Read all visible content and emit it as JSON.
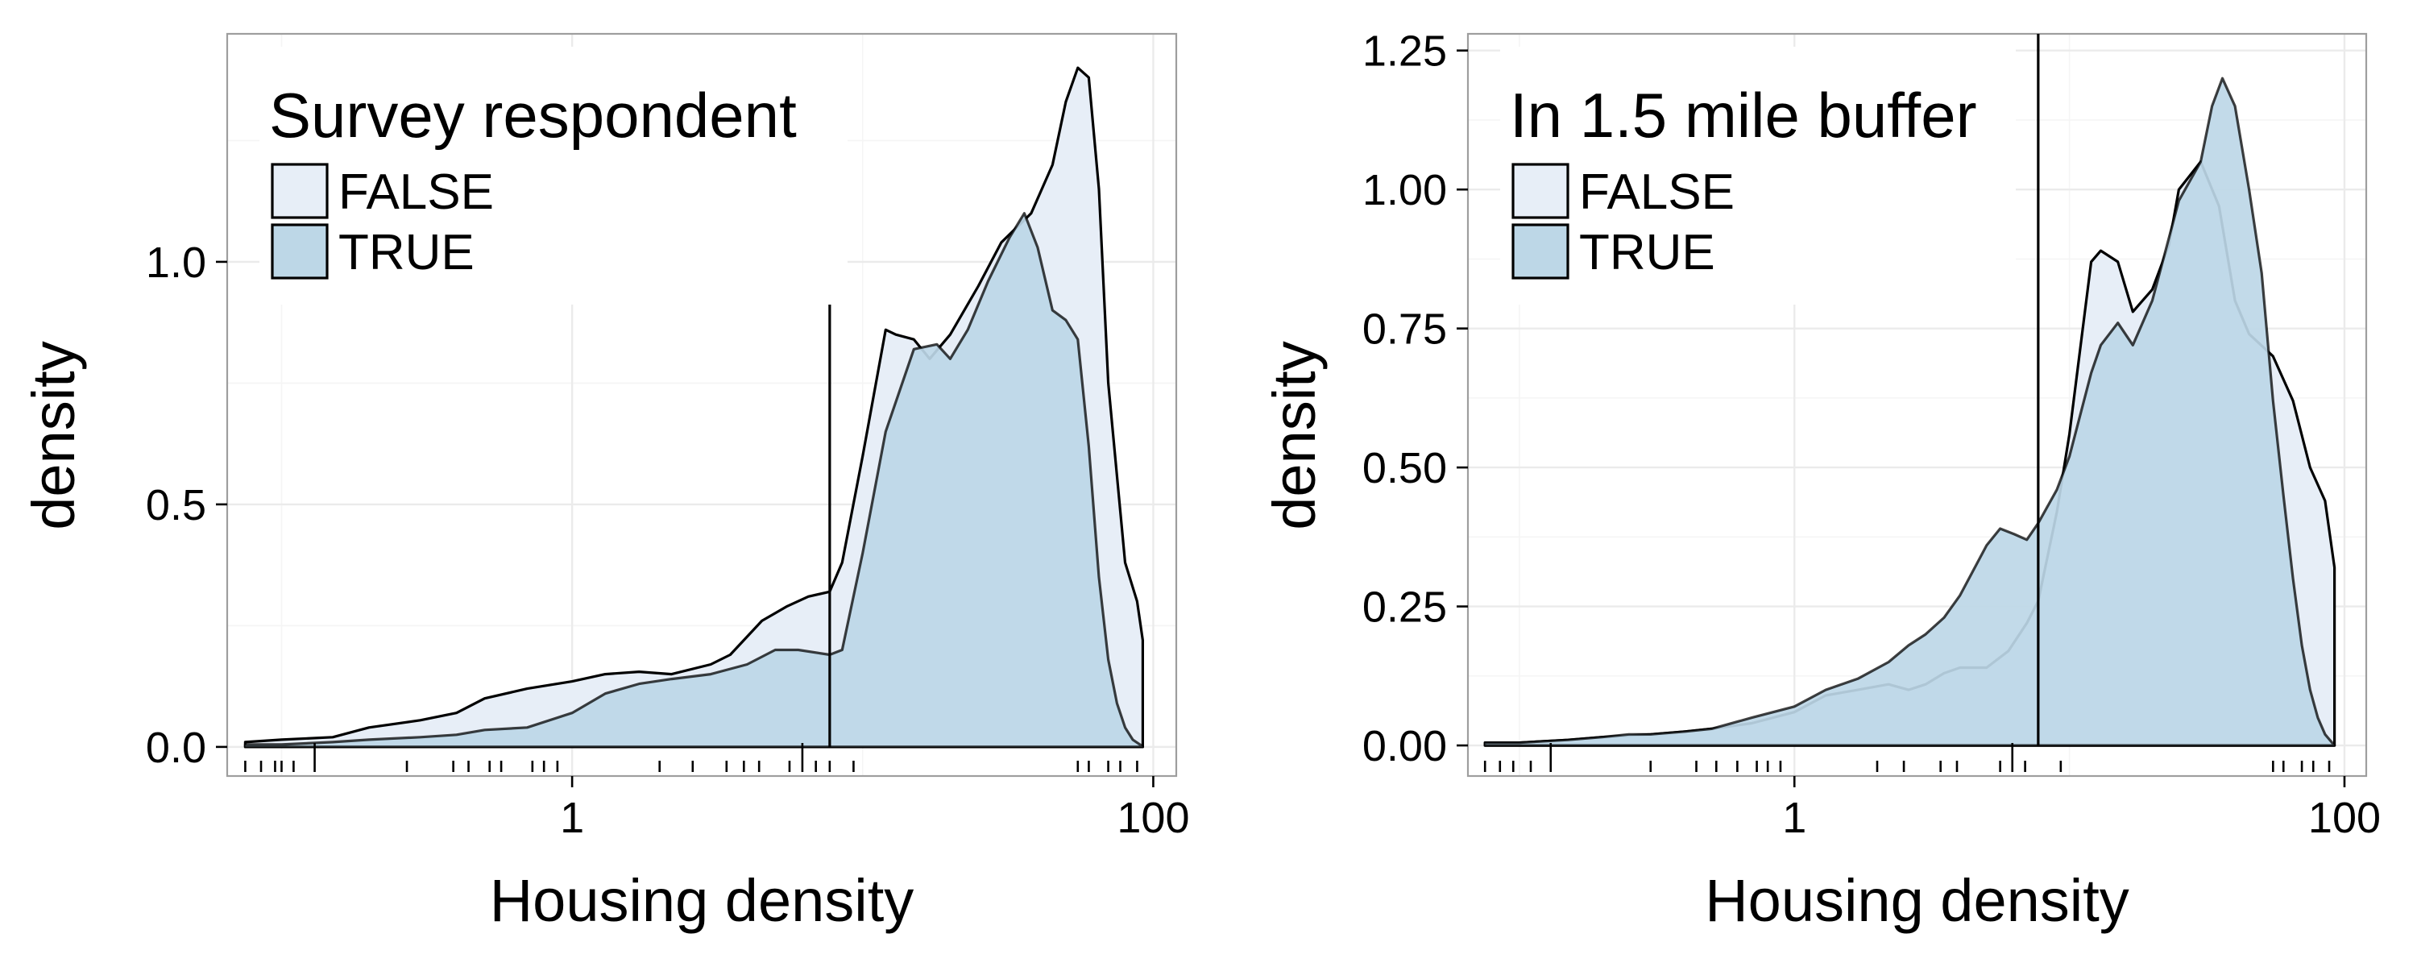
{
  "colors": {
    "false_fill": "#e7eef7",
    "true_fill": "#bdd7e7",
    "curve_stroke": "#000000",
    "background": "#ffffff"
  },
  "chart_data": [
    {
      "type": "area",
      "x_scale": "log10",
      "xlabel": "Housing density",
      "ylabel": "density",
      "xlim": [
        0.065,
        120
      ],
      "ylim": [
        -0.06,
        1.47
      ],
      "x_ticks": [
        1,
        100
      ],
      "x_tick_labels": [
        "1",
        "100"
      ],
      "y_ticks": [
        0,
        0.5,
        1.0
      ],
      "y_tick_labels": [
        "0.0",
        "0.5",
        "1.0"
      ],
      "vline_x": 7.7,
      "vline_top": 0.98,
      "legend": {
        "title": "Survey respondent",
        "position": "top-left",
        "entries": [
          "FALSE",
          "TRUE"
        ]
      },
      "rug_x": [
        0.075,
        0.085,
        0.095,
        0.1,
        0.11,
        0.27,
        0.39,
        0.44,
        0.52,
        0.57,
        0.73,
        0.8,
        0.89,
        2.0,
        2.6,
        3.4,
        3.9,
        4.4,
        5.6,
        6.9,
        7.7,
        9.3,
        55,
        60,
        70,
        77,
        88
      ],
      "rug_long_x": [
        0.13,
        6.2
      ],
      "series": [
        {
          "name": "FALSE",
          "x": [
            0.075,
            0.1,
            0.15,
            0.2,
            0.3,
            0.4,
            0.5,
            0.7,
            1.0,
            1.3,
            1.7,
            2.2,
            3.0,
            3.5,
            4.5,
            5.5,
            6.5,
            7.7,
            8.5,
            10,
            12,
            13,
            15,
            17,
            20,
            25,
            30,
            38,
            45,
            50,
            55,
            60,
            65,
            70,
            80,
            88,
            92,
            92
          ],
          "y": [
            0.01,
            0.015,
            0.02,
            0.04,
            0.055,
            0.07,
            0.1,
            0.12,
            0.135,
            0.15,
            0.155,
            0.15,
            0.17,
            0.19,
            0.26,
            0.29,
            0.31,
            0.32,
            0.38,
            0.6,
            0.86,
            0.85,
            0.84,
            0.8,
            0.85,
            0.95,
            1.04,
            1.1,
            1.2,
            1.33,
            1.4,
            1.38,
            1.15,
            0.75,
            0.38,
            0.3,
            0.22,
            0
          ]
        },
        {
          "name": "TRUE",
          "x": [
            0.075,
            0.1,
            0.15,
            0.2,
            0.3,
            0.4,
            0.5,
            0.7,
            1.0,
            1.3,
            1.7,
            2.2,
            3.0,
            4.0,
            5.0,
            6.0,
            7.7,
            8.5,
            10,
            12,
            15,
            18,
            20,
            23,
            27,
            32,
            36,
            40,
            45,
            50,
            55,
            60,
            65,
            70,
            75,
            80,
            85,
            90,
            92
          ],
          "y": [
            0.005,
            0.005,
            0.01,
            0.015,
            0.02,
            0.025,
            0.035,
            0.04,
            0.07,
            0.11,
            0.13,
            0.14,
            0.15,
            0.17,
            0.2,
            0.2,
            0.19,
            0.2,
            0.4,
            0.65,
            0.82,
            0.83,
            0.8,
            0.86,
            0.96,
            1.05,
            1.1,
            1.03,
            0.9,
            0.88,
            0.84,
            0.62,
            0.35,
            0.18,
            0.09,
            0.04,
            0.015,
            0.005,
            0
          ]
        }
      ]
    },
    {
      "type": "area",
      "x_scale": "log10",
      "xlabel": "Housing density",
      "ylabel": "density",
      "xlim": [
        0.065,
        120
      ],
      "ylim": [
        -0.055,
        1.28
      ],
      "x_ticks": [
        1,
        100
      ],
      "x_tick_labels": [
        "1",
        "100"
      ],
      "y_ticks": [
        0,
        0.25,
        0.5,
        0.75,
        1.0,
        1.25
      ],
      "y_tick_labels": [
        "0.00",
        "0.25",
        "0.50",
        "0.75",
        "1.00",
        "1.25"
      ],
      "vline_x": 7.7,
      "vline_top": 1.28,
      "legend": {
        "title": "In 1.5 mile buffer",
        "position": "top-left",
        "entries": [
          "FALSE",
          "TRUE"
        ]
      },
      "rug_x": [
        0.075,
        0.085,
        0.095,
        0.11,
        0.3,
        0.44,
        0.52,
        0.62,
        0.73,
        0.8,
        0.89,
        2.0,
        2.5,
        3.4,
        3.9,
        5.6,
        6.9,
        9.3,
        55,
        60,
        70,
        77,
        88
      ],
      "rug_long_x": [
        0.13,
        6.2
      ],
      "series": [
        {
          "name": "FALSE",
          "x": [
            0.075,
            0.1,
            0.15,
            0.2,
            0.3,
            0.4,
            0.5,
            0.7,
            1.0,
            1.3,
            1.7,
            2.2,
            2.6,
            3.0,
            3.5,
            4.0,
            5.0,
            6.0,
            7.0,
            7.7,
            9,
            10,
            12,
            13,
            15,
            17,
            20,
            23,
            25,
            30,
            35,
            40,
            45,
            55,
            65,
            75,
            85,
            92,
            92
          ],
          "y": [
            0.005,
            0.005,
            0.01,
            0.015,
            0.02,
            0.025,
            0.03,
            0.04,
            0.06,
            0.09,
            0.1,
            0.11,
            0.1,
            0.11,
            0.13,
            0.14,
            0.14,
            0.17,
            0.22,
            0.26,
            0.42,
            0.56,
            0.87,
            0.89,
            0.87,
            0.78,
            0.82,
            0.9,
            1.0,
            1.05,
            0.97,
            0.8,
            0.74,
            0.7,
            0.62,
            0.5,
            0.44,
            0.32,
            0
          ]
        },
        {
          "name": "TRUE",
          "x": [
            0.075,
            0.1,
            0.15,
            0.2,
            0.25,
            0.3,
            0.4,
            0.5,
            0.7,
            1.0,
            1.3,
            1.7,
            2.2,
            2.6,
            3.0,
            3.5,
            4.0,
            5.0,
            5.6,
            6.3,
            7.0,
            7.7,
            9,
            10,
            12,
            13,
            15,
            17,
            20,
            25,
            30,
            33,
            36,
            40,
            45,
            50,
            55,
            60,
            65,
            70,
            75,
            80,
            85,
            92
          ],
          "y": [
            0.005,
            0.005,
            0.01,
            0.015,
            0.02,
            0.02,
            0.025,
            0.03,
            0.05,
            0.07,
            0.1,
            0.12,
            0.15,
            0.18,
            0.2,
            0.23,
            0.27,
            0.36,
            0.39,
            0.38,
            0.37,
            0.4,
            0.46,
            0.52,
            0.67,
            0.72,
            0.76,
            0.72,
            0.8,
            0.98,
            1.05,
            1.15,
            1.2,
            1.15,
            1.0,
            0.85,
            0.62,
            0.45,
            0.3,
            0.18,
            0.1,
            0.05,
            0.02,
            0
          ]
        }
      ]
    }
  ]
}
